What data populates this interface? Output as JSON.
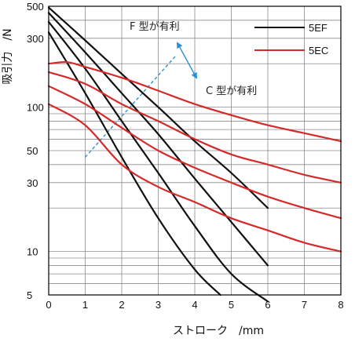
{
  "chart_data": {
    "type": "line",
    "title": "",
    "xlabel": "ストローク　/mm",
    "ylabel": "吸引力　/N",
    "xlim": [
      0,
      8
    ],
    "ylim": [
      5,
      500
    ],
    "yscale": "log",
    "x_ticks": [
      0,
      1,
      2,
      3,
      4,
      5,
      6,
      7,
      8
    ],
    "y_ticks": [
      5,
      10,
      30,
      50,
      100,
      300,
      500
    ],
    "x_tick_labels": [
      "0",
      "1",
      "2",
      "3",
      "4",
      "5",
      "6",
      "7",
      "8"
    ],
    "y_tick_labels": [
      "5",
      "10",
      "30",
      "50",
      "100",
      "300",
      "500"
    ],
    "grid": true,
    "legend_position": "top-right",
    "legend": [
      {
        "label": "5EF",
        "color": "#111111"
      },
      {
        "label": "5EC",
        "color": "#d42a2a"
      }
    ],
    "series": [
      {
        "group": "5EF",
        "color": "#111111",
        "x": [
          0,
          1,
          2,
          3,
          4,
          5,
          6
        ],
        "y": [
          490,
          290,
          170,
          100,
          58,
          35,
          20
        ]
      },
      {
        "group": "5EF",
        "color": "#111111",
        "x": [
          0,
          1,
          2,
          3,
          4,
          5,
          6
        ],
        "y": [
          450,
          240,
          125,
          65,
          32,
          16,
          8
        ]
      },
      {
        "group": "5EF",
        "color": "#111111",
        "x": [
          0,
          1,
          2,
          3,
          4,
          5,
          6
        ],
        "y": [
          390,
          185,
          80,
          35,
          15,
          7,
          4.5
        ]
      },
      {
        "group": "5EF",
        "color": "#111111",
        "x": [
          0,
          1,
          2,
          3,
          4,
          4.7
        ],
        "y": [
          330,
          125,
          45,
          17,
          7.5,
          5
        ]
      },
      {
        "group": "5EC",
        "color": "#d42a2a",
        "x": [
          0,
          0.5,
          1,
          2,
          3,
          4,
          5,
          6,
          7,
          8
        ],
        "y": [
          200,
          205,
          190,
          160,
          130,
          105,
          88,
          75,
          66,
          58
        ]
      },
      {
        "group": "5EC",
        "color": "#d42a2a",
        "x": [
          0,
          1,
          2,
          3,
          4,
          5,
          6,
          7,
          8
        ],
        "y": [
          175,
          145,
          105,
          80,
          60,
          47,
          40,
          34,
          30
        ]
      },
      {
        "group": "5EC",
        "color": "#d42a2a",
        "x": [
          0,
          1,
          2,
          3,
          4,
          5,
          6,
          7,
          8
        ],
        "y": [
          140,
          105,
          72,
          50,
          38,
          30,
          24,
          20,
          17
        ]
      },
      {
        "group": "5EC",
        "color": "#d42a2a",
        "x": [
          0,
          1,
          2,
          3,
          4,
          5,
          6,
          7,
          8
        ],
        "y": [
          105,
          75,
          40,
          28,
          22,
          17,
          14,
          11.5,
          10
        ]
      }
    ],
    "boundary_line": {
      "color": "#2e8fd6",
      "x": [
        1,
        3.5
      ],
      "y": [
        45,
        230
      ]
    },
    "annotations": {
      "f_region": "F 型が有利",
      "c_region": "C 型が有利",
      "arrow_color": "#2e8fd6"
    }
  }
}
